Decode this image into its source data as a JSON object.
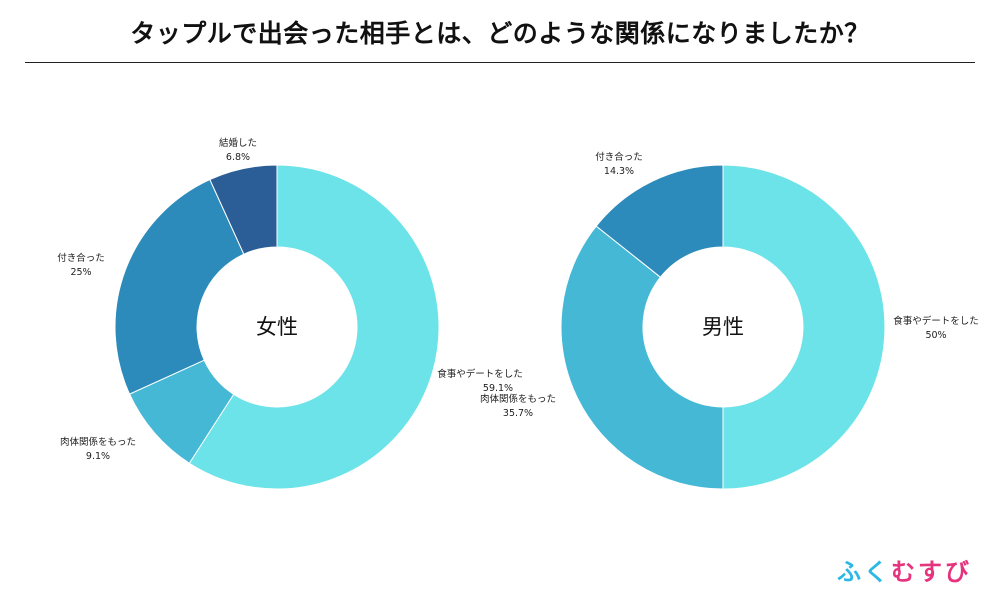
{
  "header": {
    "title": "タップルで出会った相手とは、どのような関係になりましたか？"
  },
  "chart_data": [
    {
      "type": "pie",
      "title": "女性",
      "slices": [
        {
          "label": "食事やデートをした",
          "value_text": "59.1%",
          "value": 59.1,
          "color": "#6BE3E8"
        },
        {
          "label": "肉体関係をもった",
          "value_text": "9.1%",
          "value": 9.1,
          "color": "#45B8D6"
        },
        {
          "label": "付き合った",
          "value_text": "25%",
          "value": 25.0,
          "color": "#2D8BBB"
        },
        {
          "label": "結婚した",
          "value_text": "6.8%",
          "value": 6.8,
          "color": "#2B5D97"
        }
      ]
    },
    {
      "type": "pie",
      "title": "男性",
      "slices": [
        {
          "label": "食事やデートをした",
          "value_text": "50%",
          "value": 50.0,
          "color": "#6BE3E8"
        },
        {
          "label": "肉体関係をもった",
          "value_text": "35.7%",
          "value": 35.7,
          "color": "#45B8D6"
        },
        {
          "label": "付き合った",
          "value_text": "14.3%",
          "value": 14.3,
          "color": "#2D8BBB"
        }
      ]
    }
  ],
  "brand": {
    "logo_chars": [
      {
        "char": "ふ",
        "color": "#2DB7E4"
      },
      {
        "char": "く",
        "color": "#2DB7E4"
      },
      {
        "char": "む",
        "color": "#E5337E"
      },
      {
        "char": "す",
        "color": "#E5337E"
      },
      {
        "char": "び",
        "color": "#E5337E"
      }
    ]
  }
}
